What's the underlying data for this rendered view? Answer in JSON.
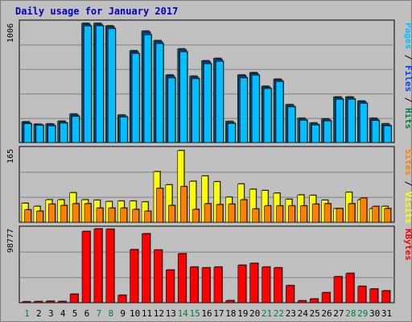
{
  "chart_data": {
    "type": "bar",
    "title": "Daily usage for January 2017",
    "colors": {
      "title": "#0000c0",
      "pages": "#00c0ff",
      "files": "#0040ff",
      "hits": "#008040",
      "sites": "#ff8000",
      "visits": "#ffff00",
      "kbytes": "#ff0000",
      "weekend_day": "#008040",
      "weekday": "#000000",
      "panel_bg": "#c0c0c0",
      "grid": "#808080"
    },
    "panels": [
      {
        "name": "hits-files-pages",
        "max_label": "1006",
        "ymax": 1006,
        "legend": [
          {
            "text": "Pages",
            "color_key": "pages"
          },
          {
            "text": " / ",
            "color_key": "weekday"
          },
          {
            "text": "Files",
            "color_key": "files"
          },
          {
            "text": " / ",
            "color_key": "weekday"
          },
          {
            "text": "Hits",
            "color_key": "hits"
          }
        ]
      },
      {
        "name": "visits-sites",
        "max_label": "165",
        "ymax": 165,
        "legend": [
          {
            "text": "Sites",
            "color_key": "sites"
          },
          {
            "text": " / ",
            "color_key": "weekday"
          },
          {
            "text": "Visits",
            "color_key": "visits"
          }
        ]
      },
      {
        "name": "kbytes",
        "max_label": "98777",
        "ymax": 98777,
        "legend": [
          {
            "text": "KBytes",
            "color_key": "kbytes"
          }
        ]
      }
    ],
    "categories": [
      "1",
      "2",
      "3",
      "4",
      "5",
      "6",
      "7",
      "8",
      "9",
      "10",
      "11",
      "12",
      "13",
      "14",
      "15",
      "16",
      "17",
      "18",
      "19",
      "20",
      "21",
      "22",
      "23",
      "24",
      "25",
      "26",
      "27",
      "28",
      "29",
      "30",
      "31"
    ],
    "weekend_days": [
      "1",
      "7",
      "8",
      "14",
      "15",
      "21",
      "22",
      "28",
      "29"
    ],
    "series": [
      {
        "name": "Hits",
        "panel": 0,
        "color_key": "hits",
        "values": [
          175,
          155,
          157,
          180,
          240,
          1006,
          1006,
          985,
          232,
          775,
          940,
          860,
          570,
          790,
          560,
          690,
          710,
          178,
          570,
          590,
          475,
          535,
          320,
          205,
          165,
          200,
          385,
          385,
          350,
          205,
          158
        ]
      },
      {
        "name": "Files",
        "panel": 0,
        "color_key": "files",
        "values": [
          165,
          150,
          150,
          170,
          230,
          995,
          995,
          975,
          222,
          765,
          930,
          850,
          560,
          780,
          550,
          680,
          700,
          168,
          560,
          580,
          465,
          525,
          310,
          195,
          155,
          190,
          375,
          375,
          340,
          195,
          148
        ]
      },
      {
        "name": "Pages",
        "panel": 0,
        "color_key": "pages",
        "values": [
          158,
          145,
          140,
          163,
          220,
          983,
          985,
          960,
          215,
          750,
          910,
          835,
          545,
          765,
          538,
          665,
          685,
          160,
          545,
          568,
          455,
          515,
          300,
          188,
          148,
          182,
          365,
          365,
          330,
          185,
          140
        ]
      },
      {
        "name": "Visits",
        "panel": 1,
        "color_key": "visits",
        "values": [
          43,
          36,
          51,
          51,
          67,
          51,
          50,
          47,
          48,
          48,
          46,
          115,
          85,
          163,
          93,
          105,
          92,
          57,
          87,
          75,
          72,
          66,
          52,
          62,
          61,
          50,
          31,
          68,
          51,
          31,
          36
        ]
      },
      {
        "name": "Sites",
        "panel": 1,
        "color_key": "sites",
        "values": [
          28,
          25,
          41,
          38,
          42,
          42,
          32,
          32,
          32,
          29,
          25,
          77,
          38,
          81,
          29,
          42,
          40,
          41,
          51,
          30,
          37,
          37,
          37,
          37,
          41,
          42,
          31,
          42,
          55,
          36,
          31
        ]
      },
      {
        "name": "KBytes",
        "panel": 2,
        "color_key": "kbytes",
        "values": [
          1200,
          1500,
          2000,
          1600,
          11500,
          96000,
          99500,
          99000,
          10000,
          71500,
          93000,
          71000,
          44000,
          66000,
          48000,
          47000,
          48000,
          2800,
          50500,
          53000,
          48000,
          47000,
          23000,
          2500,
          5000,
          13500,
          35000,
          39500,
          22000,
          18500,
          16000
        ]
      }
    ]
  }
}
